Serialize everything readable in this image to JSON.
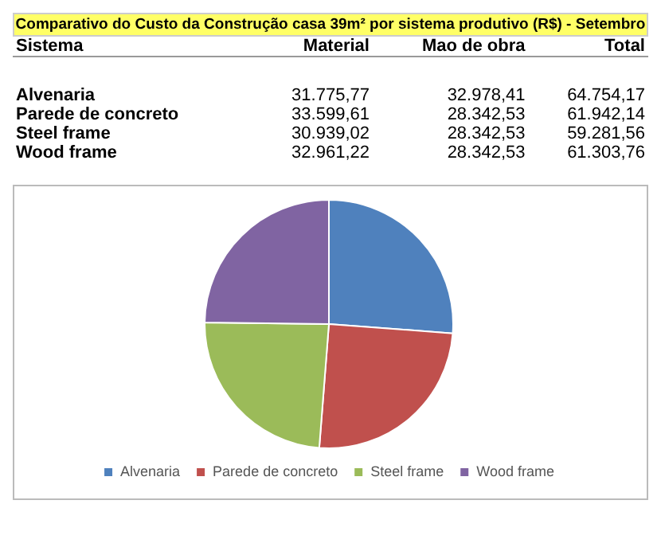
{
  "chart_data": {
    "type": "pie",
    "title": "Comparativo do Custo da Construção casa 39m² por sistema produtivo  (R$) - Setembro",
    "categories": [
      "Alvenaria",
      "Parede de concreto",
      "Steel frame",
      "Wood frame"
    ],
    "values": [
      26.19,
      25.05,
      23.97,
      24.79
    ],
    "colors": [
      "#4f81bd",
      "#c0504d",
      "#9bbb59",
      "#8064a2"
    ],
    "annotations": [
      "Sistema",
      "Material",
      "Mao de obra",
      "Total",
      "31.775,77",
      "32.978,41",
      "64.754,17",
      "33.599,61",
      "28.342,53",
      "61.942,14",
      "30.939,02",
      "28.342,53",
      "59.281,56",
      "32.961,22",
      "28.342,53",
      "61.303,76"
    ],
    "legend": "bottom"
  }
}
